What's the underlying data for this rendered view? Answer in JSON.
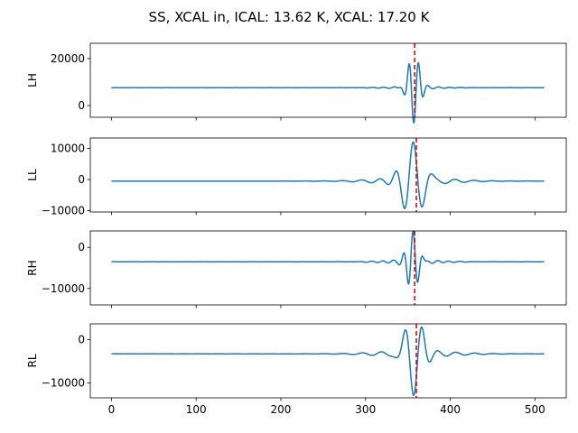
{
  "figure": {
    "title": "SS, XCAL in, ICAL: 13.62 K, XCAL: 17.20 K"
  },
  "colors": {
    "series": "#1f77b4",
    "marker_line": "#cc0000",
    "axis": "#000000"
  },
  "chart_data": [
    {
      "type": "line",
      "ylabel": "LH",
      "xlim": [
        -25,
        537
      ],
      "ylim": [
        -5000,
        26500
      ],
      "yticks": [
        0,
        20000
      ],
      "show_xticklabels": false,
      "baseline": 7600,
      "packet": {
        "center": 357,
        "amplitude": 15000,
        "sigma": 6.5,
        "period": 11.5,
        "sign": -1
      },
      "ripple": {
        "amplitude": 500,
        "sigma": 30,
        "period": 13
      },
      "marker_x": 358
    },
    {
      "type": "line",
      "ylabel": "LL",
      "xlim": [
        -25,
        537
      ],
      "ylim": [
        -10400,
        13300
      ],
      "yticks": [
        -10000,
        0,
        10000
      ],
      "show_xticklabels": false,
      "baseline": -500,
      "packet": {
        "center": 356,
        "amplitude": 12500,
        "sigma": 12,
        "period": 22,
        "sign": 1
      },
      "ripple": {
        "amplitude": 1200,
        "sigma": 40,
        "period": 22
      },
      "marker_x": 360
    },
    {
      "type": "line",
      "ylabel": "RH",
      "xlim": [
        -25,
        537
      ],
      "ylim": [
        -14000,
        4000
      ],
      "yticks": [
        -10000,
        0
      ],
      "show_xticklabels": false,
      "baseline": -3500,
      "packet": {
        "center": 356,
        "amplitude": 7500,
        "sigma": 6.5,
        "period": 11.5,
        "sign": 1
      },
      "ripple": {
        "amplitude": 500,
        "sigma": 30,
        "period": 13
      },
      "marker_x": 358
    },
    {
      "type": "line",
      "ylabel": "RL",
      "xlim": [
        -25,
        537
      ],
      "ylim": [
        -13400,
        3600
      ],
      "yticks": [
        -10000,
        0
      ],
      "show_xticklabels": true,
      "xticks": [
        0,
        100,
        200,
        300,
        400,
        500
      ],
      "baseline": -3300,
      "packet": {
        "center": 357,
        "amplitude": 9500,
        "sigma": 10,
        "period": 21,
        "sign": -1
      },
      "ripple": {
        "amplitude": 800,
        "sigma": 40,
        "period": 22
      },
      "marker_x": 360
    }
  ]
}
